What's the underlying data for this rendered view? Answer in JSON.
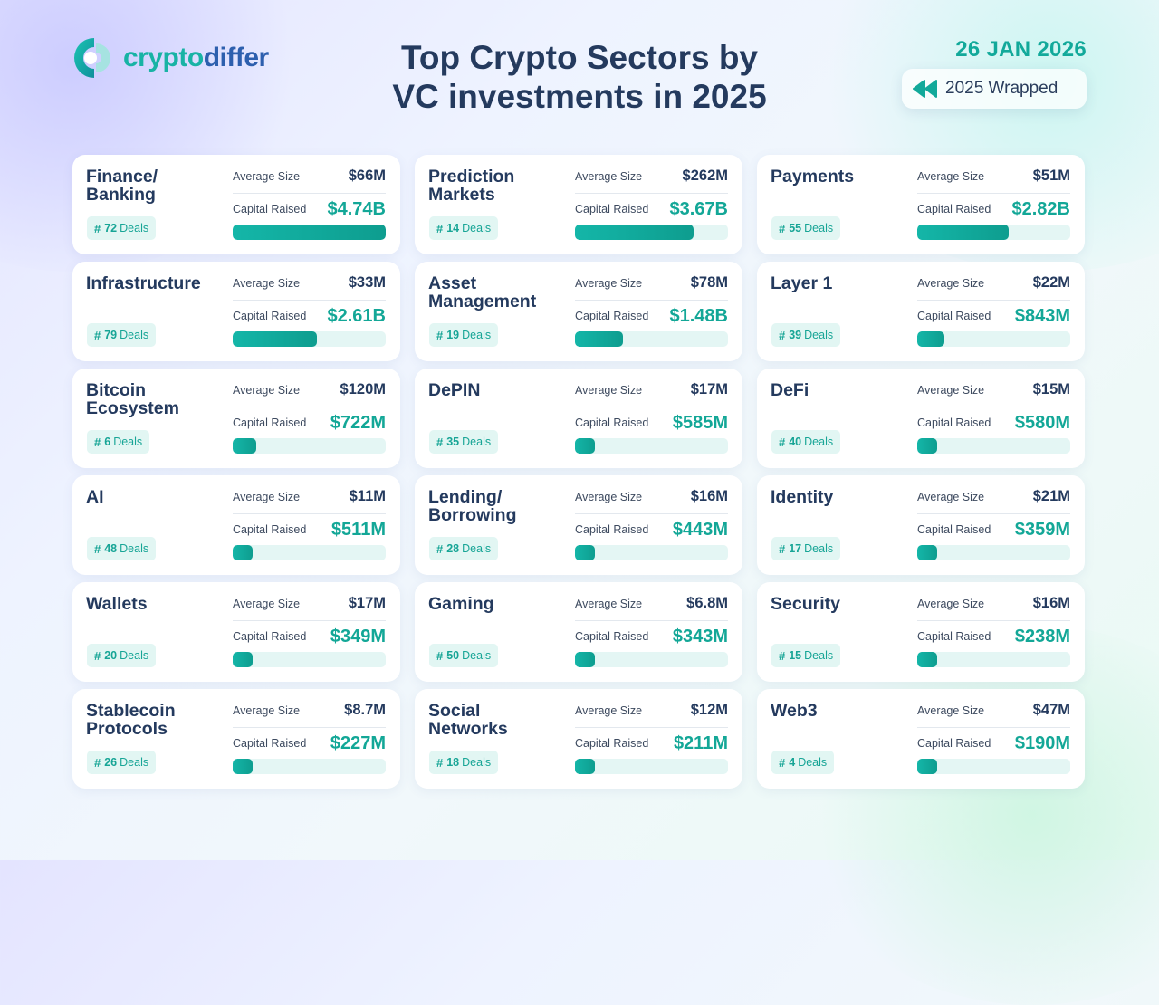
{
  "brand": {
    "logo_part1": "crypto",
    "logo_part2": "differ",
    "logo_icon": "cryptodiffer-logo-icon"
  },
  "header": {
    "title_line1": "Top Crypto Sectors by",
    "title_line2": "VC investments in 2025",
    "date": "26 JAN 2026",
    "badge_label": "2025 Wrapped",
    "badge_icon": "rewind-icon"
  },
  "labels": {
    "average_size": "Average Size",
    "capital_raised": "Capital Raised",
    "deals_suffix": "Deals",
    "hash": "#"
  },
  "colors": {
    "accent": "#13a797",
    "title": "#243a5e",
    "bar_track": "#e4f6f4",
    "bar_fill": "#14b6a8"
  },
  "chart_data": {
    "type": "bar",
    "orientation": "horizontal",
    "value_unit": "USD millions",
    "xlim": [
      0,
      4740
    ],
    "categories": [
      "Finance/ Banking",
      "Prediction Markets",
      "Payments",
      "Infrastructure",
      "Asset Management",
      "Layer 1",
      "Bitcoin Ecosystem",
      "DePIN",
      "DeFi",
      "AI",
      "Lending/ Borrowing",
      "Identity",
      "Wallets",
      "Gaming",
      "Security",
      "Stablecoin Protocols",
      "Social Networks",
      "Web3"
    ],
    "series": [
      {
        "name": "Capital Raised",
        "values": [
          4740,
          3670,
          2820,
          2610,
          1480,
          843,
          722,
          585,
          580,
          511,
          443,
          359,
          349,
          343,
          238,
          227,
          211,
          190
        ]
      }
    ],
    "sectors": [
      {
        "name_lines": [
          "Finance/",
          "Banking"
        ],
        "average_size": "$66M",
        "capital_raised": "$4.74B",
        "capital_raised_m": 4740,
        "deals": 72
      },
      {
        "name_lines": [
          "Prediction",
          "Markets"
        ],
        "average_size": "$262M",
        "capital_raised": "$3.67B",
        "capital_raised_m": 3670,
        "deals": 14
      },
      {
        "name_lines": [
          "Payments"
        ],
        "average_size": "$51M",
        "capital_raised": "$2.82B",
        "capital_raised_m": 2820,
        "deals": 55
      },
      {
        "name_lines": [
          "Infrastructure"
        ],
        "average_size": "$33M",
        "capital_raised": "$2.61B",
        "capital_raised_m": 2610,
        "deals": 79
      },
      {
        "name_lines": [
          "Asset",
          "Management"
        ],
        "average_size": "$78M",
        "capital_raised": "$1.48B",
        "capital_raised_m": 1480,
        "deals": 19
      },
      {
        "name_lines": [
          "Layer 1"
        ],
        "average_size": "$22M",
        "capital_raised": "$843M",
        "capital_raised_m": 843,
        "deals": 39
      },
      {
        "name_lines": [
          "Bitcoin",
          "Ecosystem"
        ],
        "average_size": "$120M",
        "capital_raised": "$722M",
        "capital_raised_m": 722,
        "deals": 6
      },
      {
        "name_lines": [
          "DePIN"
        ],
        "average_size": "$17M",
        "capital_raised": "$585M",
        "capital_raised_m": 585,
        "deals": 35
      },
      {
        "name_lines": [
          "DeFi"
        ],
        "average_size": "$15M",
        "capital_raised": "$580M",
        "capital_raised_m": 580,
        "deals": 40
      },
      {
        "name_lines": [
          "AI"
        ],
        "average_size": "$11M",
        "capital_raised": "$511M",
        "capital_raised_m": 511,
        "deals": 48
      },
      {
        "name_lines": [
          "Lending/",
          "Borrowing"
        ],
        "average_size": "$16M",
        "capital_raised": "$443M",
        "capital_raised_m": 443,
        "deals": 28
      },
      {
        "name_lines": [
          "Identity"
        ],
        "average_size": "$21M",
        "capital_raised": "$359M",
        "capital_raised_m": 359,
        "deals": 17
      },
      {
        "name_lines": [
          "Wallets"
        ],
        "average_size": "$17M",
        "capital_raised": "$349M",
        "capital_raised_m": 349,
        "deals": 20
      },
      {
        "name_lines": [
          "Gaming"
        ],
        "average_size": "$6.8M",
        "capital_raised": "$343M",
        "capital_raised_m": 343,
        "deals": 50
      },
      {
        "name_lines": [
          "Security"
        ],
        "average_size": "$16M",
        "capital_raised": "$238M",
        "capital_raised_m": 238,
        "deals": 15
      },
      {
        "name_lines": [
          "Stablecoin",
          "Protocols"
        ],
        "average_size": "$8.7M",
        "capital_raised": "$227M",
        "capital_raised_m": 227,
        "deals": 26
      },
      {
        "name_lines": [
          "Social",
          "Networks"
        ],
        "average_size": "$12M",
        "capital_raised": "$211M",
        "capital_raised_m": 211,
        "deals": 18
      },
      {
        "name_lines": [
          "Web3"
        ],
        "average_size": "$47M",
        "capital_raised": "$190M",
        "capital_raised_m": 190,
        "deals": 4
      }
    ]
  }
}
